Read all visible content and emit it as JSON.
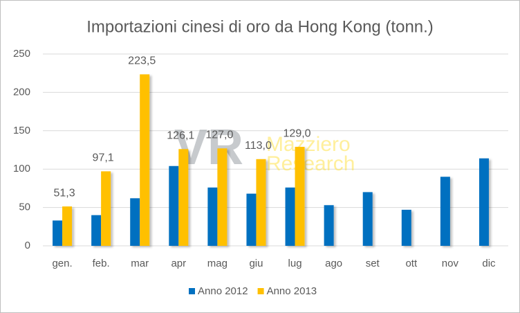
{
  "chart_data": {
    "type": "bar",
    "title": "Importazioni cinesi di oro da Hong Kong (tonn.)",
    "categories": [
      "gen.",
      "feb.",
      "mar",
      "apr",
      "mag",
      "giu",
      "lug",
      "ago",
      "set",
      "ott",
      "nov",
      "dic"
    ],
    "series": [
      {
        "name": "Anno 2012",
        "color": "#0070c0",
        "values": [
          33,
          40,
          62,
          104,
          76,
          68,
          76,
          53,
          70,
          47,
          90,
          114
        ]
      },
      {
        "name": "Anno 2013",
        "color": "#ffc000",
        "values": [
          51.3,
          97.1,
          223.5,
          126.1,
          127.0,
          113.0,
          129.0,
          null,
          null,
          null,
          null,
          null
        ],
        "value_labels": [
          "51,3",
          "97,1",
          "223,5",
          "126,1",
          "127,0",
          "113,0",
          "129,0",
          null,
          null,
          null,
          null,
          null
        ]
      }
    ],
    "ylim": [
      0,
      250
    ],
    "yticks": [
      0,
      50,
      100,
      150,
      200,
      250
    ],
    "grid": true,
    "legend": "bottom",
    "watermark": {
      "logo": "VR",
      "lines": [
        "Mazziero",
        "Research"
      ]
    }
  }
}
